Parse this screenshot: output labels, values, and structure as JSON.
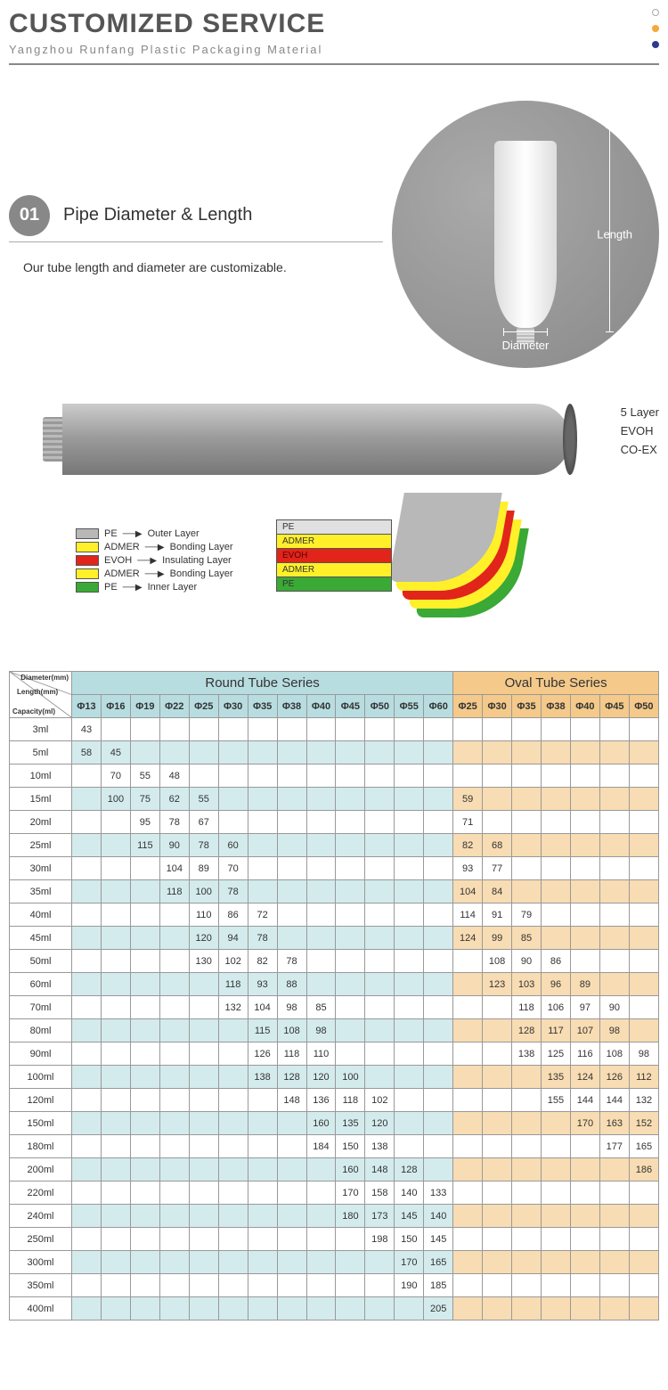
{
  "header": {
    "title": "CUSTOMIZED SERVICE",
    "subtitle": "Yangzhou Runfang Plastic Packaging Material",
    "dots": [
      "#ccc",
      "#f4a938",
      "#2b3a8f"
    ]
  },
  "section01": {
    "badge": "01",
    "title": "Pipe Diameter & Length",
    "desc": "Our tube length and diameter are customizable.",
    "length_label": "Length",
    "diameter_label": "Diameter"
  },
  "layers": {
    "side_text": [
      "5 Layer",
      "EVOH",
      "CO-EX"
    ],
    "legend": [
      {
        "color": "#b8b8b8",
        "name": "PE",
        "role": "Outer Layer"
      },
      {
        "color": "#fff02a",
        "name": "ADMER",
        "role": "Bonding Layer"
      },
      {
        "color": "#e1251b",
        "name": "EVOH",
        "role": "Insulating Layer"
      },
      {
        "color": "#fff02a",
        "name": "ADMER",
        "role": "Bonding Layer"
      },
      {
        "color": "#3aa935",
        "name": "PE",
        "role": "Inner Layer"
      }
    ],
    "stack": [
      {
        "name": "PE",
        "bg": "#e0e0e0"
      },
      {
        "name": "ADMER",
        "bg": "#fff02a"
      },
      {
        "name": "EVOH",
        "bg": "#e1251b",
        "fg": "#5a0000"
      },
      {
        "name": "ADMER",
        "bg": "#fff02a"
      },
      {
        "name": "PE",
        "bg": "#3aa935"
      }
    ]
  },
  "table": {
    "corner": {
      "t1": "Diameter(mm)",
      "t2": "Length(mm)",
      "t3": "Capacity(ml)"
    },
    "round_header": "Round Tube Series",
    "oval_header": "Oval Tube Series",
    "round_dia": [
      "Φ13",
      "Φ16",
      "Φ19",
      "Φ22",
      "Φ25",
      "Φ30",
      "Φ35",
      "Φ38",
      "Φ40",
      "Φ45",
      "Φ50",
      "Φ55",
      "Φ60"
    ],
    "oval_dia": [
      "Φ25",
      "Φ30",
      "Φ35",
      "Φ38",
      "Φ40",
      "Φ45",
      "Φ50"
    ],
    "rows": [
      {
        "cap": "3ml",
        "r": [
          "43",
          "",
          "",
          "",
          "",
          "",
          "",
          "",
          "",
          "",
          "",
          "",
          ""
        ],
        "o": [
          "",
          "",
          "",
          "",
          "",
          "",
          ""
        ]
      },
      {
        "cap": "5ml",
        "r": [
          "58",
          "45",
          "",
          "",
          "",
          "",
          "",
          "",
          "",
          "",
          "",
          "",
          ""
        ],
        "o": [
          "",
          "",
          "",
          "",
          "",
          "",
          ""
        ]
      },
      {
        "cap": "10ml",
        "r": [
          "",
          "70",
          "55",
          "48",
          "",
          "",
          "",
          "",
          "",
          "",
          "",
          "",
          ""
        ],
        "o": [
          "",
          "",
          "",
          "",
          "",
          "",
          ""
        ]
      },
      {
        "cap": "15ml",
        "r": [
          "",
          "100",
          "75",
          "62",
          "55",
          "",
          "",
          "",
          "",
          "",
          "",
          "",
          ""
        ],
        "o": [
          "59",
          "",
          "",
          "",
          "",
          "",
          ""
        ]
      },
      {
        "cap": "20ml",
        "r": [
          "",
          "",
          "95",
          "78",
          "67",
          "",
          "",
          "",
          "",
          "",
          "",
          "",
          ""
        ],
        "o": [
          "71",
          "",
          "",
          "",
          "",
          "",
          ""
        ]
      },
      {
        "cap": "25ml",
        "r": [
          "",
          "",
          "115",
          "90",
          "78",
          "60",
          "",
          "",
          "",
          "",
          "",
          "",
          ""
        ],
        "o": [
          "82",
          "68",
          "",
          "",
          "",
          "",
          ""
        ]
      },
      {
        "cap": "30ml",
        "r": [
          "",
          "",
          "",
          "104",
          "89",
          "70",
          "",
          "",
          "",
          "",
          "",
          "",
          ""
        ],
        "o": [
          "93",
          "77",
          "",
          "",
          "",
          "",
          ""
        ]
      },
      {
        "cap": "35ml",
        "r": [
          "",
          "",
          "",
          "118",
          "100",
          "78",
          "",
          "",
          "",
          "",
          "",
          "",
          ""
        ],
        "o": [
          "104",
          "84",
          "",
          "",
          "",
          "",
          ""
        ]
      },
      {
        "cap": "40ml",
        "r": [
          "",
          "",
          "",
          "",
          "110",
          "86",
          "72",
          "",
          "",
          "",
          "",
          "",
          ""
        ],
        "o": [
          "114",
          "91",
          "79",
          "",
          "",
          "",
          ""
        ]
      },
      {
        "cap": "45ml",
        "r": [
          "",
          "",
          "",
          "",
          "120",
          "94",
          "78",
          "",
          "",
          "",
          "",
          "",
          ""
        ],
        "o": [
          "124",
          "99",
          "85",
          "",
          "",
          "",
          ""
        ]
      },
      {
        "cap": "50ml",
        "r": [
          "",
          "",
          "",
          "",
          "130",
          "102",
          "82",
          "78",
          "",
          "",
          "",
          "",
          ""
        ],
        "o": [
          "",
          "108",
          "90",
          "86",
          "",
          "",
          ""
        ]
      },
      {
        "cap": "60ml",
        "r": [
          "",
          "",
          "",
          "",
          "",
          "118",
          "93",
          "88",
          "",
          "",
          "",
          "",
          ""
        ],
        "o": [
          "",
          "123",
          "103",
          "96",
          "89",
          "",
          ""
        ]
      },
      {
        "cap": "70ml",
        "r": [
          "",
          "",
          "",
          "",
          "",
          "132",
          "104",
          "98",
          "85",
          "",
          "",
          "",
          ""
        ],
        "o": [
          "",
          "",
          "118",
          "106",
          "97",
          "90",
          ""
        ]
      },
      {
        "cap": "80ml",
        "r": [
          "",
          "",
          "",
          "",
          "",
          "",
          "115",
          "108",
          "98",
          "",
          "",
          "",
          ""
        ],
        "o": [
          "",
          "",
          "128",
          "117",
          "107",
          "98",
          ""
        ]
      },
      {
        "cap": "90ml",
        "r": [
          "",
          "",
          "",
          "",
          "",
          "",
          "126",
          "118",
          "110",
          "",
          "",
          "",
          ""
        ],
        "o": [
          "",
          "",
          "138",
          "125",
          "116",
          "108",
          "98"
        ]
      },
      {
        "cap": "100ml",
        "r": [
          "",
          "",
          "",
          "",
          "",
          "",
          "138",
          "128",
          "120",
          "100",
          "",
          "",
          ""
        ],
        "o": [
          "",
          "",
          "",
          "135",
          "124",
          "126",
          "112"
        ]
      },
      {
        "cap": "120ml",
        "r": [
          "",
          "",
          "",
          "",
          "",
          "",
          "",
          "148",
          "136",
          "118",
          "102",
          "",
          ""
        ],
        "o": [
          "",
          "",
          "",
          "155",
          "144",
          "144",
          "132"
        ]
      },
      {
        "cap": "150ml",
        "r": [
          "",
          "",
          "",
          "",
          "",
          "",
          "",
          "",
          "160",
          "135",
          "120",
          "",
          ""
        ],
        "o": [
          "",
          "",
          "",
          "",
          "170",
          "163",
          "152"
        ]
      },
      {
        "cap": "180ml",
        "r": [
          "",
          "",
          "",
          "",
          "",
          "",
          "",
          "",
          "184",
          "150",
          "138",
          "",
          ""
        ],
        "o": [
          "",
          "",
          "",
          "",
          "",
          "177",
          "165"
        ]
      },
      {
        "cap": "200ml",
        "r": [
          "",
          "",
          "",
          "",
          "",
          "",
          "",
          "",
          "",
          "160",
          "148",
          "128",
          ""
        ],
        "o": [
          "",
          "",
          "",
          "",
          "",
          "",
          "186"
        ]
      },
      {
        "cap": "220ml",
        "r": [
          "",
          "",
          "",
          "",
          "",
          "",
          "",
          "",
          "",
          "170",
          "158",
          "140",
          "133"
        ],
        "o": [
          "",
          "",
          "",
          "",
          "",
          "",
          ""
        ]
      },
      {
        "cap": "240ml",
        "r": [
          "",
          "",
          "",
          "",
          "",
          "",
          "",
          "",
          "",
          "180",
          "173",
          "145",
          "140"
        ],
        "o": [
          "",
          "",
          "",
          "",
          "",
          "",
          ""
        ]
      },
      {
        "cap": "250ml",
        "r": [
          "",
          "",
          "",
          "",
          "",
          "",
          "",
          "",
          "",
          "",
          "198",
          "150",
          "145"
        ],
        "o": [
          "",
          "",
          "",
          "",
          "",
          "",
          ""
        ]
      },
      {
        "cap": "300ml",
        "r": [
          "",
          "",
          "",
          "",
          "",
          "",
          "",
          "",
          "",
          "",
          "",
          "170",
          "165"
        ],
        "o": [
          "",
          "",
          "",
          "",
          "",
          "",
          ""
        ]
      },
      {
        "cap": "350ml",
        "r": [
          "",
          "",
          "",
          "",
          "",
          "",
          "",
          "",
          "",
          "",
          "",
          "190",
          "185"
        ],
        "o": [
          "",
          "",
          "",
          "",
          "",
          "",
          ""
        ]
      },
      {
        "cap": "400ml",
        "r": [
          "",
          "",
          "",
          "",
          "",
          "",
          "",
          "",
          "",
          "",
          "",
          "",
          "205"
        ],
        "o": [
          "",
          "",
          "",
          "",
          "",
          "",
          ""
        ]
      }
    ]
  }
}
